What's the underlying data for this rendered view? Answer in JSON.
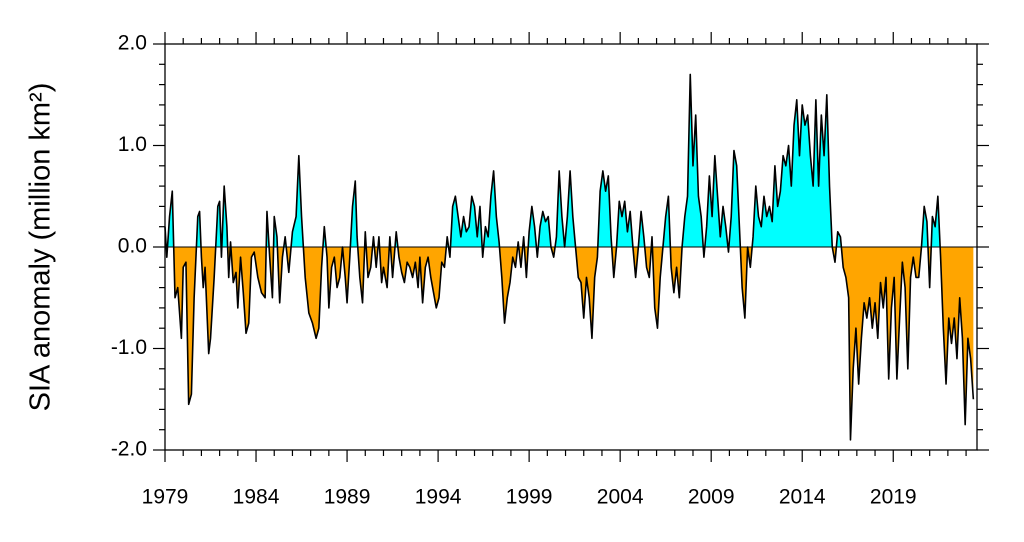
{
  "chart_data": {
    "type": "area",
    "ylabel": "SIA anomaly (million km²)",
    "pos_color": "#00ffff",
    "neg_color": "#ffa500",
    "line_color": "#000000",
    "xlim": [
      1979,
      2023.6
    ],
    "ylim": [
      -2.0,
      2.0
    ],
    "xticks": [
      1979,
      1984,
      1989,
      1994,
      1999,
      2004,
      2009,
      2014,
      2019
    ],
    "yticks": [
      {
        "value": -2,
        "label": "-2.0"
      },
      {
        "value": -1,
        "label": "-1.0"
      },
      {
        "value": 0,
        "label": "0.0"
      },
      {
        "value": 1,
        "label": "1.0"
      },
      {
        "value": 2,
        "label": "2.0"
      }
    ],
    "series": [
      {
        "name": "SIA anomaly",
        "x": [
          1979.0,
          1979.1,
          1979.25,
          1979.4,
          1979.55,
          1979.7,
          1979.9,
          1980.0,
          1980.15,
          1980.3,
          1980.45,
          1980.6,
          1980.8,
          1980.9,
          1981.0,
          1981.1,
          1981.2,
          1981.4,
          1981.5,
          1981.7,
          1981.9,
          1982.0,
          1982.1,
          1982.25,
          1982.4,
          1982.5,
          1982.6,
          1982.75,
          1982.9,
          1983.0,
          1983.15,
          1983.3,
          1983.45,
          1983.6,
          1983.75,
          1983.9,
          1984.1,
          1984.3,
          1984.5,
          1984.6,
          1984.75,
          1984.9,
          1985.0,
          1985.15,
          1985.3,
          1985.45,
          1985.6,
          1985.8,
          1986.0,
          1986.2,
          1986.35,
          1986.5,
          1986.7,
          1986.9,
          1987.1,
          1987.3,
          1987.45,
          1987.6,
          1987.75,
          1987.9,
          1988.0,
          1988.15,
          1988.3,
          1988.45,
          1988.6,
          1988.75,
          1988.9,
          1989.0,
          1989.15,
          1989.3,
          1989.45,
          1989.55,
          1989.7,
          1989.85,
          1990.0,
          1990.15,
          1990.3,
          1990.45,
          1990.6,
          1990.75,
          1990.9,
          1991.0,
          1991.2,
          1991.35,
          1991.5,
          1991.7,
          1991.85,
          1992.0,
          1992.15,
          1992.3,
          1992.45,
          1992.6,
          1992.75,
          1992.9,
          1993.0,
          1993.15,
          1993.3,
          1993.45,
          1993.6,
          1993.75,
          1993.9,
          1994.05,
          1994.2,
          1994.35,
          1994.5,
          1994.65,
          1994.8,
          1994.95,
          1995.1,
          1995.25,
          1995.4,
          1995.55,
          1995.7,
          1995.85,
          1996.0,
          1996.15,
          1996.3,
          1996.45,
          1996.6,
          1996.75,
          1996.9,
          1997.05,
          1997.2,
          1997.35,
          1997.5,
          1997.65,
          1997.8,
          1997.95,
          1998.1,
          1998.25,
          1998.4,
          1998.55,
          1998.7,
          1998.85,
          1999.0,
          1999.15,
          1999.3,
          1999.45,
          1999.6,
          1999.75,
          1999.9,
          2000.05,
          2000.2,
          2000.35,
          2000.5,
          2000.65,
          2000.8,
          2000.95,
          2001.1,
          2001.25,
          2001.4,
          2001.55,
          2001.7,
          2001.85,
          2002.0,
          2002.15,
          2002.3,
          2002.45,
          2002.6,
          2002.75,
          2002.9,
          2003.05,
          2003.2,
          2003.35,
          2003.5,
          2003.65,
          2003.8,
          2003.95,
          2004.1,
          2004.25,
          2004.4,
          2004.55,
          2004.7,
          2004.85,
          2005.0,
          2005.15,
          2005.3,
          2005.45,
          2005.6,
          2005.75,
          2005.9,
          2006.05,
          2006.2,
          2006.35,
          2006.5,
          2006.65,
          2006.8,
          2006.95,
          2007.1,
          2007.25,
          2007.4,
          2007.55,
          2007.7,
          2007.85,
          2008.0,
          2008.15,
          2008.3,
          2008.45,
          2008.6,
          2008.75,
          2008.9,
          2009.05,
          2009.2,
          2009.35,
          2009.5,
          2009.65,
          2009.8,
          2009.95,
          2010.1,
          2010.25,
          2010.4,
          2010.55,
          2010.7,
          2010.85,
          2011.0,
          2011.15,
          2011.3,
          2011.45,
          2011.6,
          2011.75,
          2011.9,
          2012.05,
          2012.2,
          2012.35,
          2012.5,
          2012.65,
          2012.8,
          2012.95,
          2013.1,
          2013.25,
          2013.4,
          2013.55,
          2013.7,
          2013.85,
          2014.0,
          2014.15,
          2014.3,
          2014.45,
          2014.6,
          2014.75,
          2014.9,
          2015.05,
          2015.2,
          2015.35,
          2015.5,
          2015.65,
          2015.8,
          2015.95,
          2016.1,
          2016.25,
          2016.4,
          2016.55,
          2016.65,
          2016.8,
          2016.95,
          2017.1,
          2017.25,
          2017.4,
          2017.55,
          2017.7,
          2017.85,
          2018.0,
          2018.15,
          2018.3,
          2018.45,
          2018.6,
          2018.75,
          2018.9,
          2019.05,
          2019.2,
          2019.35,
          2019.5,
          2019.65,
          2019.8,
          2019.95,
          2020.1,
          2020.25,
          2020.4,
          2020.55,
          2020.7,
          2020.85,
          2021.0,
          2021.15,
          2021.3,
          2021.45,
          2021.6,
          2021.75,
          2021.9,
          2022.05,
          2022.2,
          2022.35,
          2022.5,
          2022.65,
          2022.8,
          2022.95,
          2023.1,
          2023.25,
          2023.4
        ],
        "values": [
          0.2,
          -0.1,
          0.3,
          0.55,
          -0.5,
          -0.4,
          -0.9,
          -0.2,
          -0.15,
          -1.55,
          -1.45,
          -0.5,
          0.3,
          0.35,
          -0.1,
          -0.4,
          -0.2,
          -1.05,
          -0.9,
          -0.3,
          0.4,
          0.45,
          -0.1,
          0.6,
          0.2,
          -0.3,
          0.05,
          -0.35,
          -0.25,
          -0.6,
          -0.1,
          -0.45,
          -0.85,
          -0.75,
          -0.1,
          -0.05,
          -0.3,
          -0.45,
          -0.5,
          0.35,
          -0.1,
          -0.5,
          0.3,
          0.1,
          -0.55,
          -0.1,
          0.1,
          -0.25,
          0.15,
          0.3,
          0.9,
          0.3,
          -0.3,
          -0.65,
          -0.75,
          -0.9,
          -0.8,
          -0.2,
          0.2,
          -0.1,
          -0.6,
          -0.2,
          -0.1,
          -0.4,
          -0.3,
          0.0,
          -0.3,
          -0.55,
          -0.1,
          0.4,
          0.65,
          0.1,
          -0.3,
          -0.55,
          0.15,
          -0.3,
          -0.2,
          0.1,
          -0.2,
          0.1,
          -0.35,
          -0.2,
          -0.4,
          0.1,
          -0.3,
          0.15,
          -0.1,
          -0.25,
          -0.35,
          -0.15,
          -0.2,
          -0.3,
          -0.15,
          -0.4,
          -0.1,
          -0.55,
          -0.2,
          -0.1,
          -0.3,
          -0.45,
          -0.6,
          -0.5,
          -0.15,
          -0.2,
          0.1,
          -0.1,
          0.4,
          0.5,
          0.3,
          0.1,
          0.3,
          0.15,
          0.2,
          0.5,
          0.4,
          0.1,
          0.4,
          -0.1,
          0.2,
          0.1,
          0.5,
          0.75,
          0.3,
          0.05,
          -0.3,
          -0.75,
          -0.5,
          -0.35,
          -0.1,
          -0.2,
          0.05,
          -0.2,
          0.1,
          -0.3,
          0.15,
          0.4,
          0.2,
          -0.1,
          0.2,
          0.35,
          0.25,
          0.3,
          0.0,
          -0.1,
          0.1,
          0.75,
          0.3,
          0.0,
          0.3,
          0.75,
          0.3,
          0.0,
          -0.3,
          -0.35,
          -0.7,
          -0.3,
          -0.5,
          -0.9,
          -0.3,
          -0.1,
          0.55,
          0.75,
          0.55,
          0.7,
          0.1,
          -0.3,
          0.0,
          0.45,
          0.3,
          0.45,
          0.15,
          0.35,
          0.0,
          -0.3,
          0.0,
          0.35,
          0.1,
          -0.2,
          -0.3,
          0.1,
          -0.6,
          -0.8,
          -0.3,
          0.0,
          0.3,
          0.5,
          -0.2,
          -0.45,
          -0.2,
          -0.5,
          0.0,
          0.3,
          0.5,
          1.7,
          0.8,
          1.3,
          0.5,
          0.3,
          -0.1,
          0.2,
          0.7,
          0.3,
          0.9,
          0.5,
          0.1,
          0.4,
          0.2,
          -0.05,
          0.3,
          0.95,
          0.8,
          0.2,
          -0.4,
          -0.7,
          0.0,
          -0.2,
          0.1,
          0.6,
          0.3,
          0.2,
          0.5,
          0.3,
          0.4,
          0.25,
          0.8,
          0.4,
          0.55,
          0.9,
          0.8,
          1.0,
          0.6,
          1.2,
          1.45,
          0.9,
          1.4,
          1.2,
          1.3,
          0.9,
          0.6,
          1.45,
          0.6,
          1.3,
          0.9,
          1.5,
          0.6,
          0.0,
          -0.15,
          0.15,
          0.1,
          -0.2,
          -0.3,
          -0.5,
          -1.9,
          -1.2,
          -0.8,
          -1.35,
          -0.9,
          -0.55,
          -0.7,
          -0.5,
          -0.8,
          -0.55,
          -0.9,
          -0.35,
          -0.6,
          -0.3,
          -1.3,
          -0.6,
          -0.3,
          -1.3,
          -0.7,
          -0.15,
          -0.4,
          -1.2,
          -0.3,
          -0.1,
          -0.3,
          -0.3,
          0.0,
          0.4,
          0.25,
          -0.4,
          0.3,
          0.2,
          0.5,
          -0.1,
          -0.8,
          -1.35,
          -0.7,
          -0.95,
          -0.7,
          -1.1,
          -0.5,
          -0.9,
          -1.75,
          -0.9,
          -1.1,
          -1.5
        ]
      }
    ]
  }
}
